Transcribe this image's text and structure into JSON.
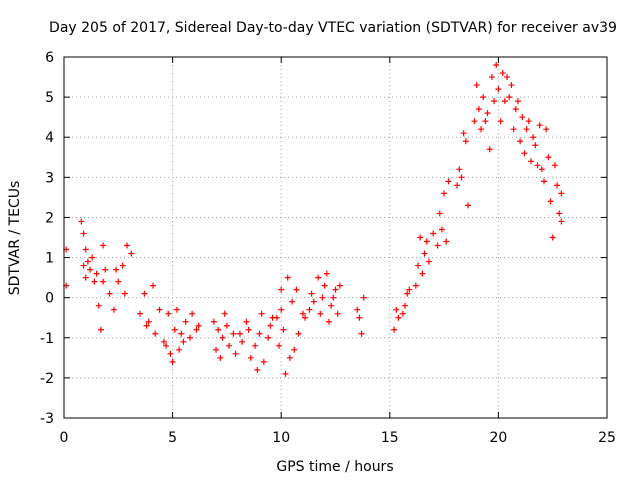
{
  "chart_data": {
    "type": "scatter",
    "title": "Day 205 of 2017, Sidereal Day-to-day VTEC variation (SDTVAR) for receiver av39",
    "xlabel": "GPS time / hours",
    "ylabel": "SDTVAR / TECUs",
    "xlim": [
      0,
      25
    ],
    "ylim": [
      -3,
      6
    ],
    "xticks": [
      0,
      5,
      10,
      15,
      20,
      25
    ],
    "yticks": [
      -3,
      -2,
      -1,
      0,
      1,
      2,
      3,
      4,
      5,
      6
    ],
    "grid": true,
    "marker": "+",
    "color": "#ff0000",
    "series": [
      {
        "name": "SDTVAR",
        "points": [
          [
            0.1,
            1.2
          ],
          [
            0.1,
            0.3
          ],
          [
            0.8,
            1.9
          ],
          [
            0.9,
            1.6
          ],
          [
            0.9,
            0.8
          ],
          [
            1.0,
            1.2
          ],
          [
            1.0,
            0.5
          ],
          [
            1.1,
            0.9
          ],
          [
            1.2,
            0.7
          ],
          [
            1.3,
            1.0
          ],
          [
            1.4,
            0.4
          ],
          [
            1.5,
            0.6
          ],
          [
            1.6,
            -0.2
          ],
          [
            1.7,
            -0.8
          ],
          [
            1.8,
            1.3
          ],
          [
            1.8,
            0.4
          ],
          [
            1.9,
            0.7
          ],
          [
            2.1,
            0.1
          ],
          [
            2.3,
            -0.3
          ],
          [
            2.4,
            0.7
          ],
          [
            2.5,
            0.4
          ],
          [
            2.7,
            0.8
          ],
          [
            2.8,
            0.1
          ],
          [
            2.9,
            1.3
          ],
          [
            3.1,
            1.1
          ],
          [
            3.5,
            -0.4
          ],
          [
            3.7,
            0.1
          ],
          [
            3.8,
            -0.7
          ],
          [
            3.9,
            -0.6
          ],
          [
            4.1,
            0.3
          ],
          [
            4.2,
            -0.9
          ],
          [
            4.4,
            -0.3
          ],
          [
            4.6,
            -1.1
          ],
          [
            4.7,
            -1.2
          ],
          [
            4.8,
            -0.4
          ],
          [
            4.9,
            -1.4
          ],
          [
            5.0,
            -1.6
          ],
          [
            5.1,
            -0.8
          ],
          [
            5.2,
            -0.3
          ],
          [
            5.3,
            -1.3
          ],
          [
            5.4,
            -0.9
          ],
          [
            5.5,
            -1.1
          ],
          [
            5.6,
            -0.6
          ],
          [
            5.8,
            -1.0
          ],
          [
            5.9,
            -0.4
          ],
          [
            6.1,
            -0.8
          ],
          [
            6.2,
            -0.7
          ],
          [
            6.9,
            -0.6
          ],
          [
            7.0,
            -1.3
          ],
          [
            7.1,
            -0.8
          ],
          [
            7.2,
            -1.5
          ],
          [
            7.3,
            -1.0
          ],
          [
            7.4,
            -0.4
          ],
          [
            7.5,
            -0.7
          ],
          [
            7.6,
            -1.2
          ],
          [
            7.8,
            -0.9
          ],
          [
            7.9,
            -1.4
          ],
          [
            8.1,
            -0.9
          ],
          [
            8.2,
            -1.1
          ],
          [
            8.4,
            -0.6
          ],
          [
            8.5,
            -0.8
          ],
          [
            8.6,
            -1.5
          ],
          [
            8.8,
            -1.2
          ],
          [
            8.9,
            -1.8
          ],
          [
            9.0,
            -0.9
          ],
          [
            9.1,
            -0.4
          ],
          [
            9.2,
            -1.6
          ],
          [
            9.4,
            -1.0
          ],
          [
            9.5,
            -0.7
          ],
          [
            9.6,
            -0.5
          ],
          [
            9.8,
            -0.5
          ],
          [
            9.9,
            -1.2
          ],
          [
            10.0,
            -0.3
          ],
          [
            10.0,
            0.2
          ],
          [
            10.1,
            -0.8
          ],
          [
            10.2,
            -1.9
          ],
          [
            10.3,
            0.5
          ],
          [
            10.4,
            -1.5
          ],
          [
            10.5,
            -0.1
          ],
          [
            10.6,
            -1.3
          ],
          [
            10.7,
            0.2
          ],
          [
            10.8,
            -0.9
          ],
          [
            11.0,
            -0.4
          ],
          [
            11.1,
            -0.5
          ],
          [
            11.3,
            -0.3
          ],
          [
            11.4,
            0.1
          ],
          [
            11.5,
            -0.1
          ],
          [
            11.7,
            0.5
          ],
          [
            11.8,
            -0.4
          ],
          [
            11.9,
            0.0
          ],
          [
            12.0,
            0.3
          ],
          [
            12.1,
            0.6
          ],
          [
            12.2,
            -0.6
          ],
          [
            12.3,
            -0.2
          ],
          [
            12.4,
            0.0
          ],
          [
            12.5,
            0.2
          ],
          [
            12.6,
            -0.4
          ],
          [
            12.7,
            0.3
          ],
          [
            13.5,
            -0.3
          ],
          [
            13.6,
            -0.5
          ],
          [
            13.7,
            -0.9
          ],
          [
            13.8,
            0.0
          ],
          [
            15.2,
            -0.8
          ],
          [
            15.3,
            -0.3
          ],
          [
            15.4,
            -0.5
          ],
          [
            15.6,
            -0.4
          ],
          [
            15.7,
            -0.2
          ],
          [
            15.8,
            0.1
          ],
          [
            15.9,
            0.2
          ],
          [
            16.2,
            0.3
          ],
          [
            16.3,
            0.8
          ],
          [
            16.4,
            1.5
          ],
          [
            16.5,
            0.6
          ],
          [
            16.6,
            1.1
          ],
          [
            16.7,
            1.4
          ],
          [
            16.8,
            0.9
          ],
          [
            17.0,
            1.6
          ],
          [
            17.2,
            1.3
          ],
          [
            17.3,
            2.1
          ],
          [
            17.4,
            1.7
          ],
          [
            17.5,
            2.6
          ],
          [
            17.6,
            1.4
          ],
          [
            17.7,
            2.9
          ],
          [
            18.1,
            2.8
          ],
          [
            18.2,
            3.2
          ],
          [
            18.3,
            3.0
          ],
          [
            18.4,
            4.1
          ],
          [
            18.5,
            3.9
          ],
          [
            18.6,
            2.3
          ],
          [
            18.9,
            4.4
          ],
          [
            19.0,
            5.3
          ],
          [
            19.1,
            4.7
          ],
          [
            19.2,
            4.2
          ],
          [
            19.3,
            5.0
          ],
          [
            19.4,
            4.4
          ],
          [
            19.5,
            4.6
          ],
          [
            19.6,
            3.7
          ],
          [
            19.7,
            5.5
          ],
          [
            19.8,
            4.9
          ],
          [
            19.9,
            5.8
          ],
          [
            20.0,
            5.2
          ],
          [
            20.1,
            4.4
          ],
          [
            20.2,
            5.6
          ],
          [
            20.3,
            4.9
          ],
          [
            20.4,
            5.5
          ],
          [
            20.5,
            5.0
          ],
          [
            20.6,
            5.3
          ],
          [
            20.7,
            4.2
          ],
          [
            20.8,
            4.7
          ],
          [
            20.9,
            4.9
          ],
          [
            21.0,
            3.9
          ],
          [
            21.1,
            4.5
          ],
          [
            21.2,
            3.6
          ],
          [
            21.3,
            4.2
          ],
          [
            21.4,
            4.4
          ],
          [
            21.5,
            3.4
          ],
          [
            21.6,
            4.0
          ],
          [
            21.7,
            3.8
          ],
          [
            21.8,
            3.3
          ],
          [
            21.9,
            4.3
          ],
          [
            22.0,
            3.2
          ],
          [
            22.1,
            2.9
          ],
          [
            22.2,
            4.2
          ],
          [
            22.3,
            3.5
          ],
          [
            22.4,
            2.4
          ],
          [
            22.5,
            1.5
          ],
          [
            22.6,
            3.3
          ],
          [
            22.7,
            2.8
          ],
          [
            22.8,
            2.1
          ],
          [
            22.9,
            2.6
          ],
          [
            22.9,
            1.9
          ]
        ]
      }
    ]
  }
}
